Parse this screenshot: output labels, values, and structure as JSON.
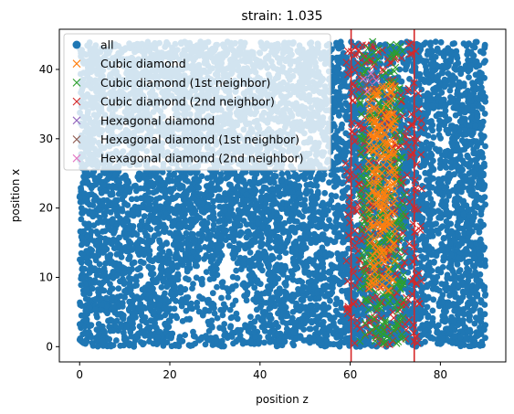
{
  "chart_data": {
    "type": "scatter",
    "title": "strain: 1.035",
    "xlabel": "position z",
    "ylabel": "position x",
    "xlim": [
      -4.5,
      94.5
    ],
    "ylim": [
      -2.2,
      45.8
    ],
    "xticks": [
      0,
      20,
      40,
      60,
      80
    ],
    "yticks": [
      0,
      10,
      20,
      30,
      40
    ],
    "grid": false,
    "legend_position": "top-left",
    "vertical_lines": [
      {
        "x": 60.2,
        "color": "#d62728"
      },
      {
        "x": 74.2,
        "color": "#d62728"
      }
    ],
    "series": [
      {
        "name": "all",
        "marker": "circle",
        "color": "#1f77b4",
        "region": {
          "x": [
            0,
            90
          ],
          "y": [
            0,
            44
          ]
        },
        "approx_count": 8000,
        "description_of_values": "atoms distributed approximately uniformly over z 0-90 and x 0-44"
      },
      {
        "name": "Cubic diamond",
        "marker": "x",
        "color": "#ff7f0e",
        "region": {
          "x": [
            64,
            70
          ],
          "y": [
            8,
            38
          ]
        },
        "approx_count": 260
      },
      {
        "name": "Cubic diamond (1st neighbor)",
        "marker": "x",
        "color": "#2ca02c",
        "region": {
          "x": [
            62,
            72
          ],
          "y": [
            0,
            44
          ]
        },
        "approx_count": 320
      },
      {
        "name": "Cubic diamond (2nd neighbor)",
        "marker": "x",
        "color": "#d62728",
        "region": {
          "x": [
            59,
            76
          ],
          "y": [
            0,
            44
          ]
        },
        "approx_count": 340
      },
      {
        "name": "Hexagonal diamond",
        "marker": "x",
        "color": "#9467bd",
        "points": [
          [
            64.2,
            38.3
          ]
        ]
      },
      {
        "name": "Hexagonal diamond (1st neighbor)",
        "marker": "x",
        "color": "#8c564b",
        "points": [
          [
            63.5,
            37.8
          ],
          [
            65.2,
            37.2
          ],
          [
            64.8,
            39.1
          ]
        ]
      },
      {
        "name": "Hexagonal diamond (2nd neighbor)",
        "marker": "x",
        "color": "#e377c2",
        "points": [
          [
            62.9,
            38.6
          ],
          [
            65.8,
            38.4
          ],
          [
            63.8,
            36.8
          ],
          [
            64.6,
            39.4
          ]
        ]
      }
    ]
  },
  "colors": {
    "legend_background": "#ffffff",
    "axis": "#000000"
  }
}
